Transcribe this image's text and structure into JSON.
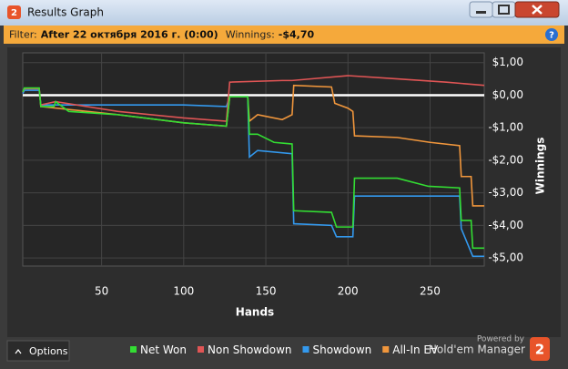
{
  "window": {
    "icon": "2",
    "title": "Results Graph"
  },
  "filter": {
    "label": "Filter:",
    "value": "After 22 октября 2016 г. (0:00)",
    "winnings_label": "Winnings:",
    "winnings": "-$4,70",
    "help": "?"
  },
  "chart_data": {
    "type": "line",
    "xlabel": "Hands",
    "ylabel": "Winnings",
    "xlim": [
      2,
      283
    ],
    "ylim": [
      -5.25,
      1.3
    ],
    "xticks": [
      50,
      100,
      150,
      200,
      250
    ],
    "yticks": [
      {
        "value": 1,
        "label": "$1,00"
      },
      {
        "value": 0,
        "label": "$0,00"
      },
      {
        "value": -1,
        "label": "-$1,00"
      },
      {
        "value": -2,
        "label": "-$2,00"
      },
      {
        "value": -3,
        "label": "-$3,00"
      },
      {
        "value": -4,
        "label": "-$4,00"
      },
      {
        "value": -5,
        "label": "-$5,00"
      }
    ],
    "grid": true,
    "zero_line": true,
    "legend": "bottom",
    "series": [
      {
        "name": "Net Won",
        "color": "#33dd33",
        "x": [
          2,
          3,
          12,
          13,
          21,
          22,
          30,
          60,
          100,
          126,
          128,
          139,
          140,
          145,
          155,
          166,
          167,
          190,
          193,
          203,
          204,
          230,
          249,
          268,
          269,
          275,
          276,
          283
        ],
        "values": [
          0.1,
          0.22,
          0.22,
          -0.35,
          -0.35,
          -0.2,
          -0.5,
          -0.6,
          -0.85,
          -0.95,
          -0.05,
          -0.05,
          -1.2,
          -1.2,
          -1.45,
          -1.5,
          -3.55,
          -3.6,
          -4.05,
          -4.05,
          -2.55,
          -2.55,
          -2.8,
          -2.85,
          -3.85,
          -3.85,
          -4.7,
          -4.7
        ]
      },
      {
        "name": "Non Showdown",
        "color": "#e05555",
        "x": [
          2,
          3,
          12,
          13,
          22,
          60,
          100,
          126,
          128,
          160,
          166,
          200,
          230,
          260,
          283
        ],
        "values": [
          0.1,
          0.2,
          0.2,
          -0.3,
          -0.2,
          -0.5,
          -0.7,
          -0.8,
          0.4,
          0.45,
          0.45,
          0.6,
          0.5,
          0.4,
          0.3
        ]
      },
      {
        "name": "Showdown",
        "color": "#3399ee",
        "x": [
          2,
          3,
          12,
          13,
          100,
          126,
          128,
          139,
          140,
          145,
          166,
          167,
          190,
          193,
          203,
          204,
          268,
          269,
          276,
          283
        ],
        "values": [
          0.05,
          0.15,
          0.15,
          -0.3,
          -0.3,
          -0.35,
          -0.05,
          -0.05,
          -1.9,
          -1.7,
          -1.8,
          -3.95,
          -4.0,
          -4.35,
          -4.35,
          -3.1,
          -3.1,
          -4.1,
          -4.95,
          -4.95
        ]
      },
      {
        "name": "All-In EV",
        "color": "#f0963c",
        "x": [
          2,
          3,
          12,
          13,
          60,
          100,
          126,
          128,
          139,
          140,
          145,
          160,
          166,
          167,
          190,
          192,
          200,
          203,
          204,
          230,
          250,
          268,
          269,
          275,
          276,
          283
        ],
        "values": [
          0.1,
          0.2,
          0.2,
          -0.35,
          -0.6,
          -0.85,
          -0.95,
          -0.05,
          -0.05,
          -0.8,
          -0.6,
          -0.75,
          -0.6,
          0.3,
          0.25,
          -0.25,
          -0.4,
          -0.5,
          -1.25,
          -1.3,
          -1.45,
          -1.55,
          -2.5,
          -2.5,
          -3.4,
          -3.4
        ]
      }
    ]
  },
  "footer": {
    "options": "Options",
    "powered_by": "Powered by",
    "brand": "Hold'em Manager",
    "logo": "2"
  }
}
